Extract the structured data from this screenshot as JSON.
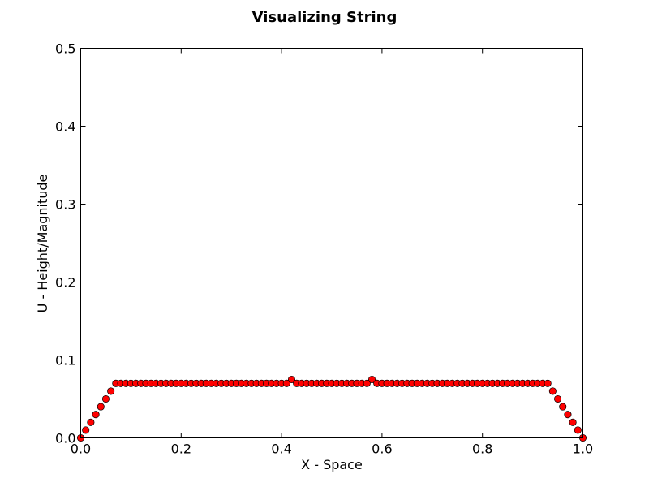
{
  "chart_data": {
    "type": "scatter",
    "title": "Visualizing String",
    "xlabel": "X - Space",
    "ylabel": "U - Height/Magnitude",
    "xlim": [
      0.0,
      1.0
    ],
    "ylim": [
      0.0,
      0.5
    ],
    "xticks": [
      "0.0",
      "0.2",
      "0.4",
      "0.6",
      "0.8",
      "1.0"
    ],
    "yticks": [
      "0.0",
      "0.1",
      "0.2",
      "0.3",
      "0.4",
      "0.5"
    ],
    "grid": false,
    "marker_color": "#ff0000",
    "marker_edge_color": "#000000",
    "series": [
      {
        "x": [
          0.0,
          0.01,
          0.02,
          0.03,
          0.04,
          0.05,
          0.06,
          0.07,
          0.08,
          0.09,
          0.1,
          0.11,
          0.12,
          0.13,
          0.14,
          0.15,
          0.16,
          0.17,
          0.18,
          0.19,
          0.2,
          0.21,
          0.22,
          0.23,
          0.24,
          0.25,
          0.26,
          0.27,
          0.28,
          0.29,
          0.3,
          0.31,
          0.32,
          0.33,
          0.34,
          0.35,
          0.36,
          0.37,
          0.38,
          0.39,
          0.4,
          0.41,
          0.42,
          0.43,
          0.44,
          0.45,
          0.46,
          0.47,
          0.48,
          0.49,
          0.5,
          0.51,
          0.52,
          0.53,
          0.54,
          0.55,
          0.56,
          0.57,
          0.58,
          0.59,
          0.6,
          0.61,
          0.62,
          0.63,
          0.64,
          0.65,
          0.66,
          0.67,
          0.68,
          0.69,
          0.7,
          0.71,
          0.72,
          0.73,
          0.74,
          0.75,
          0.76,
          0.77,
          0.78,
          0.79,
          0.8,
          0.81,
          0.82,
          0.83,
          0.84,
          0.85,
          0.86,
          0.87,
          0.88,
          0.89,
          0.9,
          0.91,
          0.92,
          0.93,
          0.94,
          0.95,
          0.96,
          0.97,
          0.98,
          0.99,
          1.0
        ],
        "y": [
          0.0,
          0.01,
          0.02,
          0.03,
          0.04,
          0.05,
          0.06,
          0.07,
          0.07,
          0.07,
          0.07,
          0.07,
          0.07,
          0.07,
          0.07,
          0.07,
          0.07,
          0.07,
          0.07,
          0.07,
          0.07,
          0.07,
          0.07,
          0.07,
          0.07,
          0.07,
          0.07,
          0.07,
          0.07,
          0.07,
          0.07,
          0.07,
          0.07,
          0.07,
          0.07,
          0.07,
          0.07,
          0.07,
          0.07,
          0.07,
          0.07,
          0.07,
          0.075,
          0.07,
          0.07,
          0.07,
          0.07,
          0.07,
          0.07,
          0.07,
          0.07,
          0.07,
          0.07,
          0.07,
          0.07,
          0.07,
          0.07,
          0.07,
          0.075,
          0.07,
          0.07,
          0.07,
          0.07,
          0.07,
          0.07,
          0.07,
          0.07,
          0.07,
          0.07,
          0.07,
          0.07,
          0.07,
          0.07,
          0.07,
          0.07,
          0.07,
          0.07,
          0.07,
          0.07,
          0.07,
          0.07,
          0.07,
          0.07,
          0.07,
          0.07,
          0.07,
          0.07,
          0.07,
          0.07,
          0.07,
          0.07,
          0.07,
          0.07,
          0.07,
          0.06,
          0.05,
          0.04,
          0.03,
          0.02,
          0.01,
          0.0
        ]
      }
    ]
  }
}
